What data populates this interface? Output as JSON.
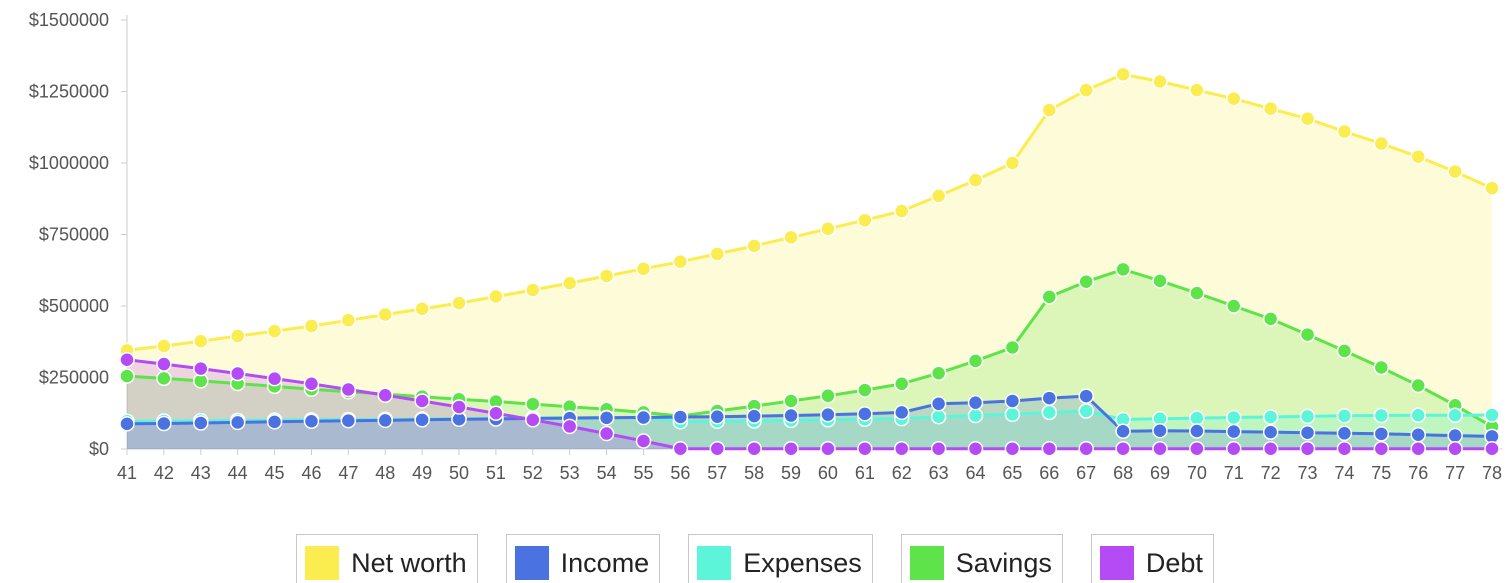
{
  "chart_data": {
    "type": "area",
    "x": [
      "41",
      "42",
      "43",
      "44",
      "45",
      "46",
      "47",
      "48",
      "49",
      "50",
      "51",
      "52",
      "53",
      "54",
      "55",
      "56",
      "57",
      "58",
      "59",
      "60",
      "61",
      "62",
      "63",
      "64",
      "65",
      "66",
      "67",
      "68",
      "69",
      "70",
      "71",
      "72",
      "73",
      "74",
      "75",
      "76",
      "77",
      "78"
    ],
    "ylim": [
      0,
      1500000
    ],
    "yticks": [
      0,
      250000,
      500000,
      750000,
      1000000,
      1250000,
      1500000
    ],
    "ytick_labels": [
      "$0",
      "$250000",
      "$500000",
      "$750000",
      "$1000000",
      "$1250000",
      "$1500000"
    ],
    "grid": false,
    "legend_placement": "bottom",
    "series": [
      {
        "name": "Net worth",
        "color": "#fbec4f",
        "values": [
          345000,
          360000,
          377000,
          395000,
          412000,
          430000,
          450000,
          470000,
          490000,
          510000,
          533000,
          556000,
          580000,
          605000,
          630000,
          655000,
          682000,
          710000,
          740000,
          770000,
          800000,
          832000,
          885000,
          940000,
          1000000,
          1185000,
          1255000,
          1310000,
          1285000,
          1255000,
          1225000,
          1190000,
          1155000,
          1110000,
          1068000,
          1022000,
          970000,
          912000
        ]
      },
      {
        "name": "Savings",
        "color": "#5fe34a",
        "values": [
          255000,
          247000,
          238000,
          229000,
          219000,
          209000,
          200000,
          192000,
          183000,
          174000,
          166000,
          157000,
          148000,
          139000,
          128000,
          115000,
          133000,
          150000,
          168000,
          186000,
          206000,
          228000,
          265000,
          308000,
          355000,
          532000,
          585000,
          628000,
          588000,
          545000,
          500000,
          455000,
          400000,
          343000,
          285000,
          222000,
          153000,
          78000
        ]
      },
      {
        "name": "Expenses",
        "color": "#5cf5d9",
        "values": [
          97000,
          98000,
          99000,
          100000,
          101000,
          102000,
          103000,
          104000,
          105000,
          106000,
          107000,
          108000,
          109000,
          110000,
          111000,
          95000,
          97000,
          98000,
          100000,
          102000,
          104000,
          106000,
          113000,
          117000,
          121000,
          128000,
          133000,
          103000,
          106000,
          108000,
          110000,
          112000,
          114000,
          116000,
          117000,
          118000,
          118000,
          119000
        ]
      },
      {
        "name": "Income",
        "color": "#4a72e0",
        "values": [
          88000,
          89000,
          91000,
          93000,
          95000,
          97000,
          99000,
          100000,
          102000,
          104000,
          105000,
          107000,
          108000,
          109000,
          110000,
          112000,
          113000,
          115000,
          117000,
          120000,
          123000,
          128000,
          158000,
          162000,
          168000,
          178000,
          185000,
          62000,
          64000,
          63000,
          61000,
          59000,
          57000,
          55000,
          53000,
          50000,
          47000,
          44000
        ]
      },
      {
        "name": "Debt",
        "color": "#b44bf5",
        "values": [
          312000,
          297000,
          281000,
          264000,
          246000,
          228000,
          208000,
          188000,
          168000,
          147000,
          125000,
          102000,
          79000,
          54000,
          28000,
          1000,
          1000,
          1000,
          1000,
          1000,
          1000,
          1000,
          1000,
          1000,
          1000,
          1000,
          1000,
          1000,
          1000,
          1000,
          1000,
          1000,
          1000,
          1000,
          1000,
          1000,
          1000,
          1000
        ]
      }
    ]
  },
  "legend": [
    {
      "label": "Net worth",
      "color": "#fbec4f"
    },
    {
      "label": "Income",
      "color": "#4a72e0"
    },
    {
      "label": "Expenses",
      "color": "#5cf5d9"
    },
    {
      "label": "Savings",
      "color": "#5fe34a"
    },
    {
      "label": "Debt",
      "color": "#b44bf5"
    }
  ]
}
